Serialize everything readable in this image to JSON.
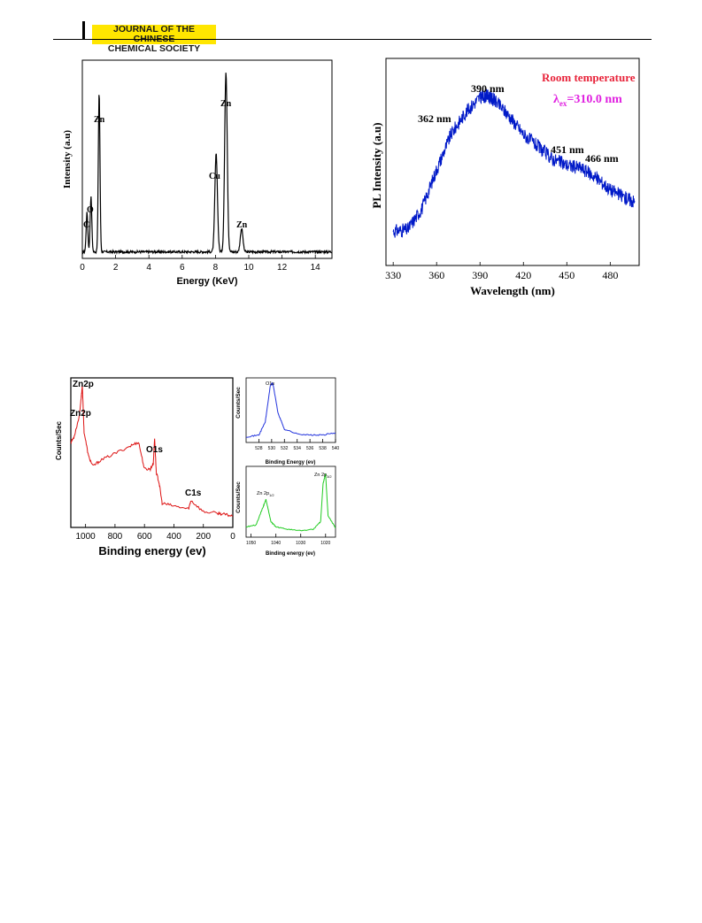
{
  "header": {
    "journal_line1": "JOURNAL OF THE CHINESE",
    "journal_line2": "CHEMICAL SOCIETY"
  },
  "figures": {
    "edx": {
      "ylabel": "Intensity (a.u)",
      "xlabel": "Energy (KeV)",
      "xticks": [
        "0",
        "2",
        "4",
        "6",
        "8",
        "10",
        "12",
        "14"
      ],
      "peak_labels": [
        "C",
        "O",
        "Zn",
        "Cu",
        "Zn",
        "Zn"
      ]
    },
    "pl": {
      "ylabel": "PL Intensity (a.u)",
      "xlabel": "Wavelength (nm)",
      "xticks": [
        "330",
        "360",
        "390",
        "420",
        "450",
        "480"
      ],
      "annotations": [
        "362 nm",
        "390 nm",
        "451 nm",
        "466 nm"
      ],
      "room_temp": "Room temperature",
      "lambda_symbol": "λ",
      "lambda_sub": "ex",
      "lambda_value": "=310.0 nm"
    },
    "xps_survey": {
      "ylabel": "Counts/Sec",
      "xlabel": "Binding energy (ev)",
      "xticks": [
        "1000",
        "800",
        "600",
        "400",
        "200",
        "0"
      ],
      "peak_labels": [
        "Zn2p",
        "Zn2p",
        "O1s",
        "C1s"
      ]
    },
    "xps_o1s": {
      "ylabel": "Counts/Sec",
      "xlabel": "Binding Energy (ev)",
      "xticks": [
        "528",
        "530",
        "532",
        "534",
        "536",
        "538",
        "540"
      ],
      "peak_label": "O1s"
    },
    "xps_zn2p": {
      "ylabel": "Counts/Sec",
      "xlabel": "Binding energy (ev)",
      "xticks": [
        "1050",
        "1040",
        "1030",
        "1020"
      ],
      "label_left": "Zn 2p",
      "label_left_sub": "1/2",
      "label_right": "Zn 2p",
      "label_right_sub": "3/2"
    }
  },
  "chart_data": [
    {
      "type": "line",
      "xlabel": "Energy (KeV)",
      "ylabel": "Intensity (a.u)",
      "xlim": [
        0,
        15
      ],
      "peaks": [
        {
          "label": "C",
          "x": 0.28,
          "y": 0.2
        },
        {
          "label": "O",
          "x": 0.52,
          "y": 0.28
        },
        {
          "label": "Zn",
          "x": 1.01,
          "y": 0.82
        },
        {
          "label": "Cu",
          "x": 8.04,
          "y": 0.5
        },
        {
          "label": "Zn",
          "x": 8.63,
          "y": 0.92
        },
        {
          "label": "Zn",
          "x": 9.57,
          "y": 0.12
        }
      ],
      "color": "#000000"
    },
    {
      "type": "line",
      "xlabel": "Wavelength (nm)",
      "ylabel": "PL Intensity (a.u)",
      "xlim": [
        325,
        500
      ],
      "x": [
        330,
        340,
        350,
        360,
        370,
        380,
        390,
        395,
        400,
        410,
        420,
        430,
        440,
        450,
        460,
        470,
        480,
        490,
        497
      ],
      "y": [
        0.05,
        0.06,
        0.2,
        0.45,
        0.68,
        0.82,
        0.92,
        0.93,
        0.9,
        0.8,
        0.68,
        0.6,
        0.52,
        0.48,
        0.46,
        0.4,
        0.32,
        0.27,
        0.24
      ],
      "color": "#0019c8"
    },
    {
      "type": "line",
      "xlabel": "Binding energy (ev)",
      "ylabel": "Counts/Sec",
      "xlim": [
        1100,
        0
      ],
      "x": [
        1100,
        1080,
        1045,
        1030,
        1022,
        1010,
        980,
        950,
        900,
        800,
        700,
        640,
        600,
        560,
        540,
        531,
        520,
        500,
        480,
        400,
        300,
        285,
        200,
        100,
        50,
        0
      ],
      "y": [
        0.55,
        0.58,
        0.72,
        0.85,
        0.95,
        0.62,
        0.45,
        0.38,
        0.42,
        0.47,
        0.52,
        0.55,
        0.36,
        0.36,
        0.4,
        0.58,
        0.34,
        0.26,
        0.12,
        0.1,
        0.08,
        0.14,
        0.06,
        0.05,
        0.04,
        0.03
      ],
      "color": "#dd1111"
    },
    {
      "type": "line",
      "xlabel": "Binding Energy (ev)",
      "ylabel": "Counts/Sec",
      "xlim": [
        526,
        540
      ],
      "x": [
        526,
        528,
        529,
        529.8,
        530.2,
        531,
        532,
        534,
        536,
        538,
        540
      ],
      "y": [
        0.05,
        0.08,
        0.3,
        0.92,
        0.95,
        0.45,
        0.18,
        0.1,
        0.08,
        0.08,
        0.12
      ],
      "color": "#2233dd"
    },
    {
      "type": "line",
      "xlabel": "Binding energy (ev)",
      "ylabel": "Counts/Sec",
      "xlim": [
        1052,
        1016
      ],
      "x": [
        1052,
        1048,
        1045,
        1044,
        1042,
        1040,
        1035,
        1030,
        1025,
        1022,
        1021,
        1020,
        1019,
        1016
      ],
      "y": [
        0.12,
        0.15,
        0.45,
        0.55,
        0.2,
        0.12,
        0.08,
        0.06,
        0.08,
        0.2,
        0.8,
        0.95,
        0.3,
        0.1
      ],
      "color": "#22cc22"
    }
  ]
}
